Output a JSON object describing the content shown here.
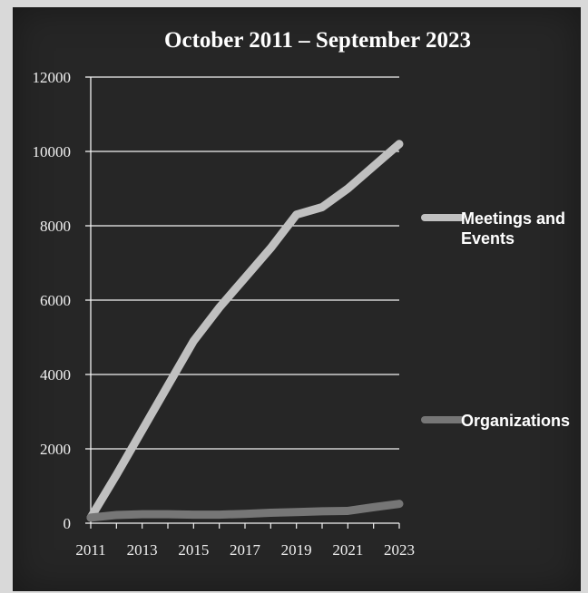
{
  "chart_data": {
    "type": "line",
    "title": "October 2011 – September 2023",
    "xlabel": "",
    "ylabel": "",
    "x": [
      2011,
      2012,
      2013,
      2014,
      2015,
      2016,
      2017,
      2018,
      2019,
      2020,
      2021,
      2022,
      2023
    ],
    "x_tick_labels": [
      "2011",
      "2013",
      "2015",
      "2017",
      "2019",
      "2021",
      "2023"
    ],
    "y_tick_labels": [
      "0",
      "2000",
      "4000",
      "6000",
      "8000",
      "10000",
      "12000"
    ],
    "ylim": [
      0,
      12000
    ],
    "grid": true,
    "legend_position": "right",
    "series": [
      {
        "name_line1": "Meetings and",
        "name_line2": "Events",
        "color": "#c0c0c0",
        "values": [
          150,
          1300,
          2500,
          3700,
          4900,
          5800,
          6600,
          7400,
          8300,
          8500,
          9000,
          9600,
          10200
        ]
      },
      {
        "name_line1": "Organizations",
        "name_line2": "",
        "color": "#767676",
        "values": [
          150,
          220,
          240,
          240,
          230,
          230,
          250,
          280,
          300,
          320,
          330,
          430,
          520
        ]
      }
    ]
  }
}
